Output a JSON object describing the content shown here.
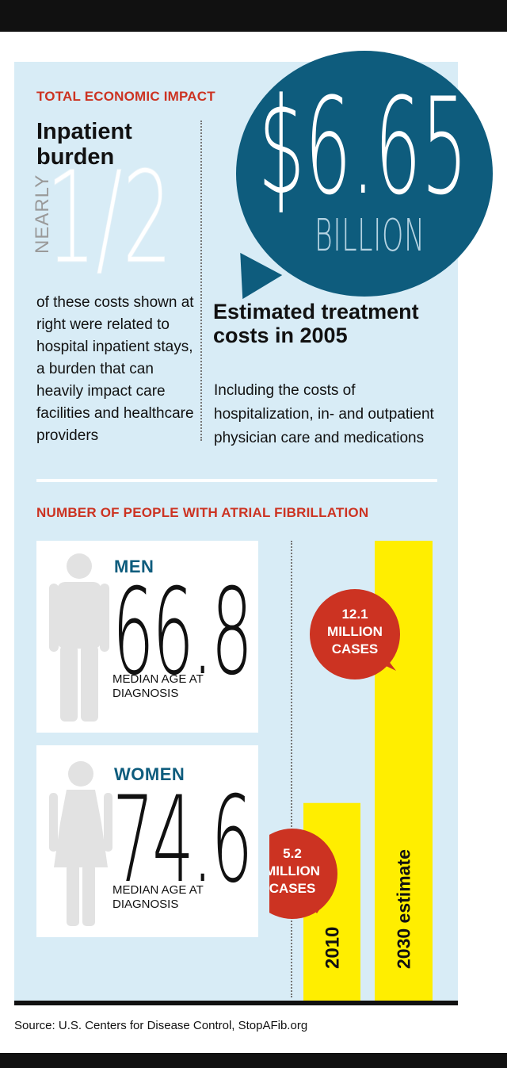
{
  "economic": {
    "section_label": "TOTAL ECONOMIC IMPACT",
    "inpatient_title": "Inpatient burden",
    "nearly": "NEARLY",
    "fraction": "1/2",
    "inpatient_desc": "of these costs shown at right were related to hospital inpatient stays, a burden that can heavily impact care facilities and healthcare providers",
    "total_value": "$6.65",
    "total_unit": "BILLION",
    "estimated_title": "Estimated treatment costs in 2005",
    "estimated_desc": "Including the costs of hospitalization, in- and outpatient physician care and medications"
  },
  "people": {
    "section_label": "NUMBER OF PEOPLE WITH ATRIAL FIBRILLATION",
    "men": {
      "label": "MEN",
      "age": "66.8",
      "caption": "MEDIAN AGE AT DIAGNOSIS"
    },
    "women": {
      "label": "WOMEN",
      "age": "74.6",
      "caption": "MEDIAN AGE AT DIAGNOSIS"
    }
  },
  "colors": {
    "accent_red": "#cc3322",
    "bubble_blue": "#0e5c7d",
    "panel_blue": "#d8ecf6",
    "bar_yellow": "#ffee00"
  },
  "chart_data": {
    "type": "bar",
    "categories": [
      "2010",
      "2030 estimate"
    ],
    "values": [
      5.2,
      12.1
    ],
    "unit": "million cases",
    "data_labels": [
      [
        "5.2",
        "MILLION",
        "CASES"
      ],
      [
        "12.1",
        "MILLION",
        "CASES"
      ]
    ],
    "ylim": [
      0,
      12.1
    ],
    "grid": false,
    "legend": "none"
  },
  "footer": {
    "source": "Source: U.S. Centers for Disease Control, StopAFib.org"
  }
}
